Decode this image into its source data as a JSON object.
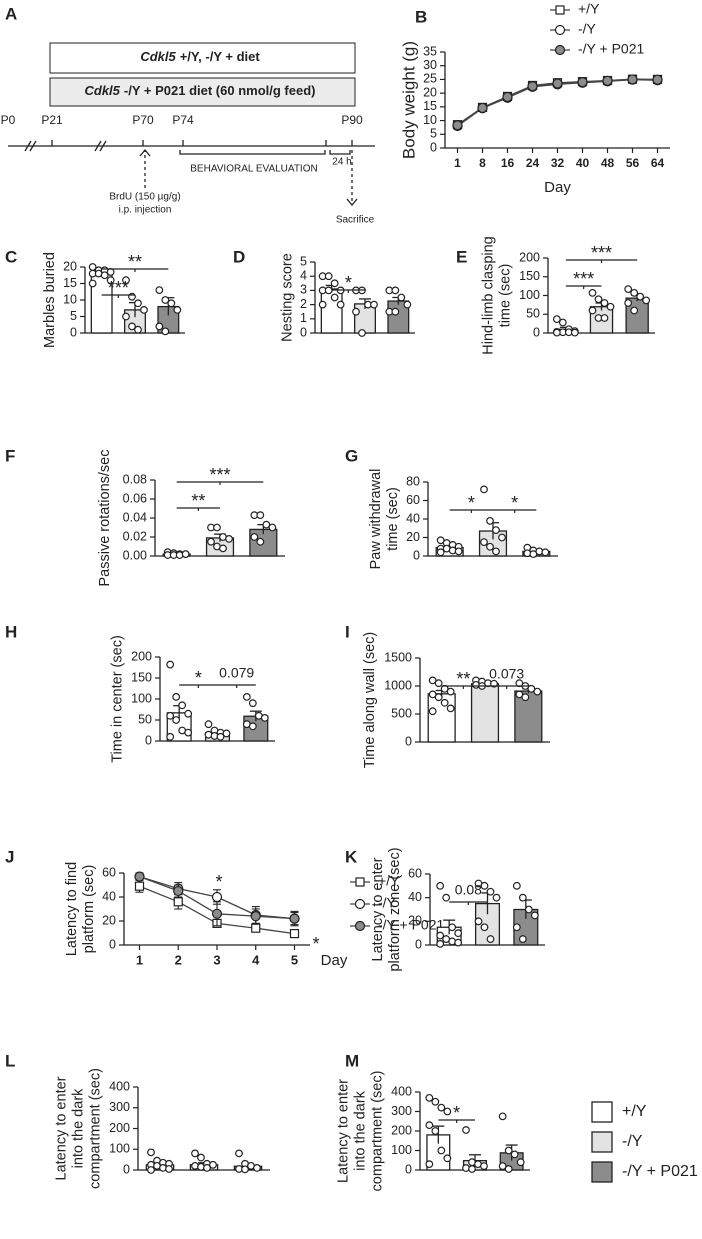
{
  "timeline": {
    "panel": "A",
    "box1": {
      "gene": "Cdkl5",
      "text": "+/Y, -/Y + diet"
    },
    "box2": {
      "gene": "Cdkl5",
      "text": "-/Y + P021 diet (60 nmol/g feed)"
    },
    "timepoints": [
      "P0",
      "P21",
      "P70",
      "P74",
      "P90"
    ],
    "behavior": "BEHAVIORAL EVALUATION",
    "interval": "24 h",
    "brdu": [
      "BrdU (150 µg/g)",
      "i.p. injection"
    ],
    "sacrifice": "Sacrifice"
  },
  "chart_data": [
    {
      "type": "line",
      "panel": "B",
      "ylabel": [
        "Body weight (g)"
      ],
      "xlabel": "Day",
      "categories": [
        "1",
        "8",
        "16",
        "24",
        "32",
        "40",
        "48",
        "56",
        "64"
      ],
      "ylim": [
        0,
        35
      ],
      "yticks": [
        0,
        5,
        10,
        15,
        20,
        25,
        30,
        35
      ],
      "legend": "top-right",
      "series": [
        {
          "name": "+/Y",
          "marker": "square",
          "color": "#ffffff",
          "values": [
            8.5,
            14.8,
            18.8,
            22.8,
            23.8,
            24.2,
            24.6,
            25.1,
            25.0
          ]
        },
        {
          "name": "-/Y",
          "marker": "circle",
          "color": "#ffffff",
          "values": [
            8.0,
            14.5,
            18.3,
            22.3,
            23.2,
            23.8,
            24.3,
            24.9,
            24.7
          ]
        },
        {
          "name": "-/Y + P021",
          "marker": "circle",
          "color": "#8c8c8c",
          "values": [
            8.3,
            14.6,
            18.6,
            22.5,
            23.5,
            24.0,
            24.5,
            25.0,
            24.9
          ]
        }
      ]
    },
    {
      "type": "bar",
      "panel": "C",
      "ylabel": [
        "Marbles buried"
      ],
      "categories": [
        null,
        null,
        null
      ],
      "colors": [
        "#ffffff",
        "#e3e3e3",
        "#8c8c8c"
      ],
      "ylim": [
        0,
        20
      ],
      "yticks": [
        0,
        5,
        10,
        15,
        20
      ],
      "values": [
        18,
        7,
        8
      ],
      "errors": [
        0.8,
        2.2,
        2.7
      ],
      "points": [
        [
          20,
          19,
          19,
          18.5,
          18,
          18,
          17.5,
          16,
          15
        ],
        [
          16,
          11,
          9,
          7,
          5,
          2,
          1
        ],
        [
          13,
          10,
          9,
          7,
          2,
          0.5
        ]
      ],
      "significance": [
        {
          "from": 0,
          "to": 1,
          "label": "***"
        },
        {
          "from": 0,
          "to": 2,
          "label": "**"
        }
      ]
    },
    {
      "type": "bar",
      "panel": "D",
      "ylabel": [
        "Nesting score"
      ],
      "categories": [
        null,
        null,
        null
      ],
      "colors": [
        "#ffffff",
        "#e3e3e3",
        "#8c8c8c"
      ],
      "ylim": [
        0,
        5
      ],
      "yticks": [
        0,
        1,
        2,
        3,
        4,
        5
      ],
      "values": [
        3.1,
        2.05,
        2.25
      ],
      "errors": [
        0.25,
        0.35,
        0.25
      ],
      "points": [
        [
          4,
          4,
          3.5,
          3,
          3,
          3,
          2.5,
          2,
          2
        ],
        [
          3,
          3,
          2,
          2,
          1.5,
          0
        ],
        [
          3,
          3,
          2.5,
          2,
          1.5,
          1.5
        ]
      ],
      "significance": [
        {
          "from": 0,
          "to": 1,
          "label": "*"
        }
      ]
    },
    {
      "type": "bar",
      "panel": "E",
      "ylabel": [
        "Hind-limb clasping",
        "time (sec)"
      ],
      "categories": [
        null,
        null,
        null
      ],
      "colors": [
        "#ffffff",
        "#e3e3e3",
        "#8c8c8c"
      ],
      "ylim": [
        0,
        200
      ],
      "yticks": [
        0,
        50,
        100,
        150,
        200
      ],
      "values": [
        10,
        70,
        93
      ],
      "errors": [
        5,
        10,
        8
      ],
      "points": [
        [
          37,
          28,
          10,
          5,
          3,
          2,
          2,
          1,
          1
        ],
        [
          107,
          90,
          80,
          70,
          60,
          40,
          40
        ],
        [
          117,
          107,
          97,
          87,
          80,
          60
        ]
      ],
      "significance": [
        {
          "from": 0,
          "to": 1,
          "label": "***"
        },
        {
          "from": 0,
          "to": 2,
          "label": "***"
        }
      ]
    },
    {
      "type": "bar",
      "panel": "F",
      "ylabel": [
        "Passive rotations/sec"
      ],
      "categories": [
        null,
        null,
        null
      ],
      "colors": [
        "#ffffff",
        "#e3e3e3",
        "#8c8c8c"
      ],
      "ylim": [
        0,
        0.08
      ],
      "yticks": [
        {
          "value": 0,
          "label": "0.00"
        },
        0.02,
        0.04,
        0.06,
        0.08
      ],
      "values": [
        0.002,
        0.019,
        0.028
      ],
      "errors": [
        0.0005,
        0.004,
        0.005
      ],
      "points": [
        [
          0.004,
          0.003,
          0.002,
          0.002,
          0.001,
          0.001,
          0.001,
          0.002
        ],
        [
          0.03,
          0.03,
          0.02,
          0.018,
          0.015,
          0.01,
          0.008
        ],
        [
          0.043,
          0.043,
          0.033,
          0.03,
          0.02,
          0.015
        ]
      ],
      "significance": [
        {
          "from": 0,
          "to": 1,
          "label": "**"
        },
        {
          "from": 0,
          "to": 2,
          "label": "***"
        }
      ]
    },
    {
      "type": "bar",
      "panel": "G",
      "ylabel": [
        "Paw withdrawal",
        "time (sec)"
      ],
      "categories": [
        null,
        null,
        null
      ],
      "colors": [
        "#ffffff",
        "#e3e3e3",
        "#8c8c8c"
      ],
      "ylim": [
        0,
        80
      ],
      "yticks": [
        0,
        20,
        40,
        60,
        80
      ],
      "values": [
        9,
        27,
        5
      ],
      "errors": [
        1.5,
        9,
        1.5
      ],
      "points": [
        [
          17,
          14,
          12,
          10,
          8,
          8,
          6,
          5,
          4
        ],
        [
          72,
          38,
          28,
          20,
          15,
          10,
          5
        ],
        [
          9,
          6,
          5,
          4,
          3,
          2
        ]
      ],
      "significance": [
        {
          "from": 0,
          "to": 1,
          "label": "*"
        },
        {
          "from": 1,
          "to": 2,
          "label": "*"
        }
      ]
    },
    {
      "type": "bar",
      "panel": "H",
      "ylabel": [
        "Time in center (sec)"
      ],
      "categories": [
        null,
        null,
        null
      ],
      "colors": [
        "#ffffff",
        "#e3e3e3",
        "#8c8c8c"
      ],
      "ylim": [
        0,
        200
      ],
      "yticks": [
        0,
        50,
        100,
        150,
        200
      ],
      "values": [
        67,
        20,
        59
      ],
      "errors": [
        17,
        4,
        12
      ],
      "points": [
        [
          182,
          105,
          85,
          65,
          60,
          50,
          25,
          20,
          10
        ],
        [
          40,
          25,
          20,
          18,
          15,
          12,
          10
        ],
        [
          105,
          90,
          60,
          55,
          40,
          35
        ]
      ],
      "significance": [
        {
          "from": 0,
          "to": 1,
          "label": "*"
        },
        {
          "from": 1,
          "to": 2,
          "label": "0.079"
        }
      ]
    },
    {
      "type": "bar",
      "panel": "I",
      "ylabel": [
        "Time along wall (sec)"
      ],
      "categories": [
        null,
        null,
        null
      ],
      "colors": [
        "#ffffff",
        "#e3e3e3",
        "#8c8c8c"
      ],
      "ylim": [
        0,
        1500
      ],
      "yticks": [
        0,
        500,
        1000,
        1500
      ],
      "values": [
        860,
        1040,
        910
      ],
      "errors": [
        60,
        20,
        40
      ],
      "points": [
        [
          1100,
          1050,
          950,
          900,
          850,
          800,
          700,
          600,
          550
        ],
        [
          1100,
          1080,
          1050,
          1040,
          1020,
          1000
        ],
        [
          1050,
          1000,
          950,
          900,
          850,
          800
        ]
      ],
      "significance": [
        {
          "from": 0,
          "to": 1,
          "label": "**"
        },
        {
          "from": 1,
          "to": 2,
          "label": "0.073"
        }
      ]
    },
    {
      "type": "line",
      "panel": "J",
      "ylabel": [
        "Latency to find",
        "platform (sec)"
      ],
      "xlabel": "Day",
      "x": [
        1,
        2,
        3,
        4,
        5
      ],
      "xlim": [
        0.6,
        5.4
      ],
      "xticks": [
        1,
        2,
        3,
        4,
        5
      ],
      "ylim": [
        0,
        60
      ],
      "yticks": [
        0,
        20,
        40,
        60
      ],
      "legend": "right",
      "annotations": [
        "*",
        "*"
      ],
      "series": [
        {
          "name": "+/Y",
          "marker": "square",
          "color": "#ffffff",
          "values": [
            49,
            36,
            18,
            14,
            9.5
          ],
          "errors": [
            5,
            6,
            3,
            2,
            1
          ]
        },
        {
          "name": "-/Y",
          "marker": "circle",
          "color": "#ffffff",
          "values": [
            57,
            47,
            40,
            25,
            22
          ],
          "errors": [
            3,
            5,
            6,
            7,
            6
          ]
        },
        {
          "name": "-/Y + P021",
          "marker": "circle",
          "color": "#8c8c8c",
          "values": [
            57,
            45,
            26,
            24,
            22
          ],
          "errors": [
            3,
            5,
            10,
            6,
            5
          ]
        }
      ]
    },
    {
      "type": "bar",
      "panel": "K",
      "ylabel": [
        "Latency to enter",
        "platform zone (sec)"
      ],
      "categories": [
        null,
        null,
        null
      ],
      "colors": [
        "#ffffff",
        "#e3e3e3",
        "#8c8c8c"
      ],
      "ylim": [
        0,
        60
      ],
      "yticks": [
        0,
        20,
        40,
        60
      ],
      "values": [
        15,
        35,
        30
      ],
      "errors": [
        6,
        9,
        8
      ],
      "points": [
        [
          50,
          40,
          15,
          10,
          8,
          5,
          3,
          2,
          1
        ],
        [
          52,
          50,
          45,
          40,
          20,
          15,
          5
        ],
        [
          50,
          40,
          30,
          25,
          15,
          5
        ]
      ],
      "significance": [
        {
          "from": 0,
          "to": 1,
          "label": "0.08"
        }
      ]
    },
    {
      "type": "bar",
      "panel": "L",
      "ylabel": [
        "Latency to enter",
        "into the dark",
        "compartment (sec)"
      ],
      "categories": [
        null,
        null,
        null
      ],
      "colors": [
        "#ffffff",
        "#e3e3e3",
        "#8c8c8c"
      ],
      "ylim": [
        0,
        400
      ],
      "yticks": [
        0,
        100,
        200,
        300,
        400
      ],
      "values": [
        25,
        25,
        18
      ],
      "errors": [
        8,
        10,
        10
      ],
      "points": [
        [
          85,
          45,
          35,
          30,
          25,
          20,
          10,
          5,
          0
        ],
        [
          80,
          60,
          30,
          25,
          20,
          15,
          10
        ],
        [
          80,
          30,
          20,
          10,
          5,
          3
        ]
      ],
      "significance": []
    },
    {
      "type": "bar",
      "panel": "M",
      "ylabel": [
        "Latency to enter",
        "into the dark",
        "compartment (sec)"
      ],
      "categories": [
        null,
        null,
        null
      ],
      "colors": [
        "#ffffff",
        "#e3e3e3",
        "#8c8c8c"
      ],
      "ylim": [
        0,
        400
      ],
      "yticks": [
        0,
        100,
        200,
        300,
        400
      ],
      "values": [
        180,
        48,
        88
      ],
      "errors": [
        45,
        30,
        40
      ],
      "points": [
        [
          370,
          350,
          320,
          300,
          230,
          200,
          100,
          60,
          30
        ],
        [
          205,
          40,
          30,
          20,
          10,
          5
        ],
        [
          275,
          100,
          80,
          40,
          20,
          5
        ]
      ],
      "significance": [
        {
          "from": 0,
          "to": 1,
          "label": "*"
        }
      ],
      "legend": [
        "+/Y",
        "-/Y",
        "-/Y + P021"
      ]
    }
  ]
}
